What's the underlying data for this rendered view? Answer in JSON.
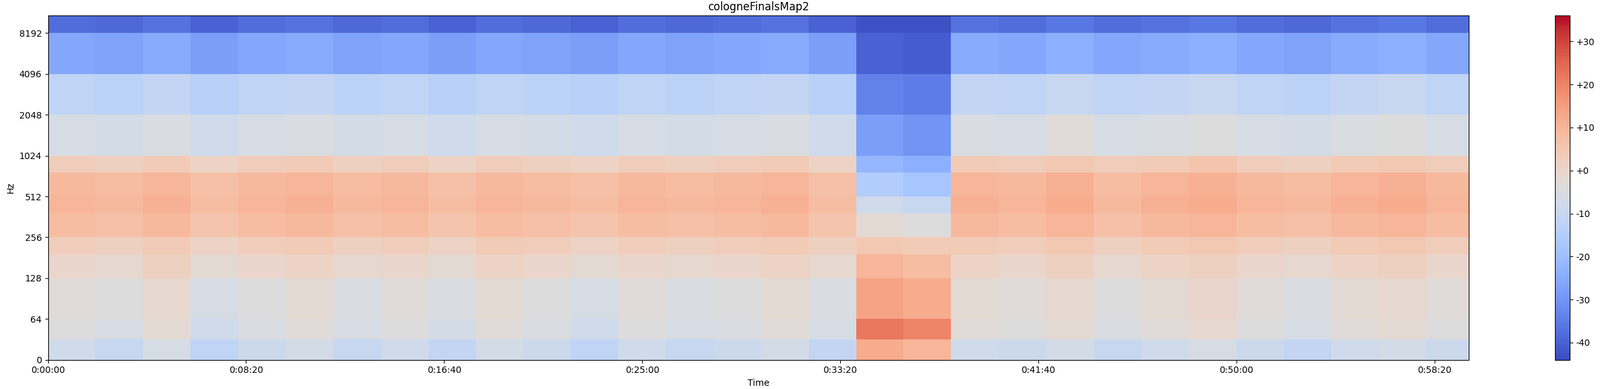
{
  "chart_data": {
    "type": "heatmap",
    "title": "cologneFinalsMap2",
    "x_label": "Time",
    "y_label": "Hz",
    "xlim": [
      0,
      3587
    ],
    "ylim": [
      0,
      11025
    ],
    "xticks": [
      {
        "value": 0,
        "label": "0:00:00"
      },
      {
        "value": 500,
        "label": "0:08:20"
      },
      {
        "value": 1000,
        "label": "0:16:40"
      },
      {
        "value": 1500,
        "label": "0:25:00"
      },
      {
        "value": 2000,
        "label": "0:33:20"
      },
      {
        "value": 2500,
        "label": "0:41:40"
      },
      {
        "value": 3000,
        "label": "0:50:00"
      },
      {
        "value": 3500,
        "label": "0:58:20"
      }
    ],
    "yticks": [
      0,
      64,
      128,
      256,
      512,
      1024,
      2048,
      4096,
      8192
    ],
    "x_edges": [
      0,
      120,
      240,
      360,
      480,
      600,
      720,
      840,
      960,
      1080,
      1200,
      1320,
      1440,
      1560,
      1680,
      1800,
      1920,
      2040,
      2160,
      2280,
      2400,
      2520,
      2640,
      2760,
      2880,
      3000,
      3120,
      3240,
      3360,
      3480,
      3587
    ],
    "y_edges": [
      0,
      32,
      64,
      128,
      192,
      256,
      384,
      512,
      768,
      1024,
      2048,
      4096,
      8192,
      11025
    ],
    "cells": [
      [
        -8,
        -10,
        -6,
        -12,
        -9,
        -7,
        -10,
        -8,
        -11,
        -7,
        -9,
        -12,
        -8,
        -10,
        -9,
        -7,
        -11,
        12,
        10,
        -8,
        -9,
        -7,
        -10,
        -8,
        -6,
        -9,
        -11,
        -8,
        -7,
        -9
      ],
      [
        -4,
        -6,
        -2,
        -8,
        -5,
        -3,
        -6,
        -4,
        -7,
        -3,
        -5,
        -8,
        -4,
        -6,
        -5,
        -3,
        -6,
        22,
        20,
        -3,
        -4,
        -2,
        -5,
        -3,
        -1,
        -4,
        -6,
        -3,
        -2,
        -4
      ],
      [
        -3,
        -4,
        -1,
        -6,
        -4,
        -2,
        -5,
        -3,
        -5,
        -2,
        -4,
        -6,
        -3,
        -5,
        -4,
        -2,
        -5,
        14,
        12,
        -2,
        -3,
        -1,
        -4,
        -2,
        0,
        -3,
        -5,
        -2,
        -1,
        -3
      ],
      [
        0,
        -1,
        2,
        -2,
        0,
        1,
        -1,
        0,
        -2,
        1,
        0,
        -2,
        0,
        -1,
        0,
        1,
        -1,
        10,
        8,
        1,
        0,
        2,
        -1,
        1,
        2,
        0,
        -1,
        1,
        2,
        0
      ],
      [
        3,
        2,
        4,
        1,
        3,
        4,
        2,
        3,
        1,
        4,
        3,
        1,
        3,
        2,
        3,
        4,
        2,
        5,
        4,
        4,
        3,
        5,
        2,
        4,
        5,
        3,
        2,
        4,
        5,
        3
      ],
      [
        8,
        7,
        9,
        6,
        8,
        9,
        7,
        8,
        6,
        8,
        7,
        6,
        8,
        7,
        8,
        9,
        6,
        -2,
        -4,
        9,
        8,
        10,
        7,
        9,
        10,
        8,
        7,
        9,
        10,
        8
      ],
      [
        10,
        9,
        11,
        8,
        10,
        11,
        9,
        10,
        8,
        10,
        9,
        8,
        10,
        9,
        10,
        11,
        8,
        -8,
        -10,
        11,
        10,
        12,
        9,
        11,
        12,
        10,
        9,
        11,
        12,
        10
      ],
      [
        9,
        8,
        10,
        7,
        9,
        10,
        8,
        9,
        7,
        9,
        8,
        7,
        9,
        8,
        9,
        10,
        7,
        -15,
        -18,
        10,
        9,
        11,
        8,
        10,
        11,
        9,
        8,
        10,
        11,
        9
      ],
      [
        3,
        2,
        4,
        1,
        3,
        4,
        2,
        3,
        1,
        3,
        2,
        1,
        3,
        2,
        3,
        4,
        1,
        -22,
        -24,
        4,
        3,
        5,
        3,
        4,
        6,
        3,
        2,
        4,
        5,
        3
      ],
      [
        -6,
        -7,
        -5,
        -8,
        -6,
        -5,
        -7,
        -6,
        -8,
        -6,
        -7,
        -8,
        -6,
        -7,
        -6,
        -5,
        -8,
        -28,
        -30,
        -5,
        -6,
        -3,
        -6,
        -5,
        -4,
        -6,
        -7,
        -5,
        -4,
        -6
      ],
      [
        -12,
        -13,
        -11,
        -14,
        -12,
        -11,
        -13,
        -12,
        -14,
        -12,
        -13,
        -14,
        -12,
        -13,
        -12,
        -11,
        -14,
        -34,
        -35,
        -11,
        -12,
        -10,
        -12,
        -11,
        -10,
        -12,
        -13,
        -11,
        -10,
        -12
      ],
      [
        -26,
        -27,
        -25,
        -28,
        -26,
        -25,
        -27,
        -26,
        -28,
        -26,
        -27,
        -28,
        -26,
        -27,
        -26,
        -25,
        -28,
        -40,
        -41,
        -25,
        -26,
        -24,
        -26,
        -25,
        -24,
        -26,
        -27,
        -25,
        -24,
        -26
      ],
      [
        -38,
        -39,
        -37,
        -40,
        -38,
        -37,
        -39,
        -38,
        -40,
        -38,
        -39,
        -40,
        -38,
        -39,
        -38,
        -37,
        -40,
        -43,
        -43,
        -37,
        -38,
        -36,
        -38,
        -37,
        -36,
        -38,
        -39,
        -37,
        -36,
        -38
      ]
    ],
    "colorbar_range": [
      -44,
      36
    ],
    "colorbar_ticks": [
      {
        "value": -40,
        "label": "-40"
      },
      {
        "value": -30,
        "label": "-30"
      },
      {
        "value": -20,
        "label": "-20"
      },
      {
        "value": -10,
        "label": "-10"
      },
      {
        "value": 0,
        "label": "+0"
      },
      {
        "value": 10,
        "label": "+10"
      },
      {
        "value": 20,
        "label": "+20"
      },
      {
        "value": 30,
        "label": "+30"
      }
    ]
  }
}
